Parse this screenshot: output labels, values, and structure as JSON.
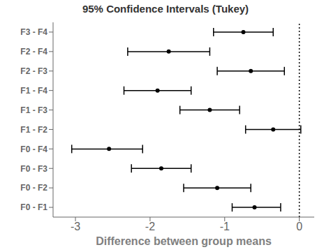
{
  "chart_data": {
    "type": "errorbar",
    "orientation": "horizontal",
    "title": "95% Confidence Intervals (Tukey)",
    "xlabel": "Difference between group means",
    "categories": [
      "F3 - F4",
      "F2 - F4",
      "F2 - F3",
      "F1 - F4",
      "F1 - F3",
      "F1 - F2",
      "F0 - F4",
      "F0 - F3",
      "F0 - F2",
      "F0 - F1"
    ],
    "values": [
      -0.75,
      -1.75,
      -0.65,
      -1.9,
      -1.2,
      -0.35,
      -2.55,
      -1.85,
      -1.1,
      -0.6
    ],
    "lower": [
      -1.15,
      -2.3,
      -1.1,
      -2.35,
      -1.6,
      -0.72,
      -3.05,
      -2.25,
      -1.55,
      -0.9
    ],
    "upper": [
      -0.35,
      -1.2,
      -0.2,
      -1.45,
      -0.8,
      0.02,
      -2.1,
      -1.45,
      -0.65,
      -0.25
    ],
    "xlim": [
      -3.3,
      0.2
    ],
    "xticks": [
      -3,
      -2,
      -1,
      0
    ],
    "color": "#000000",
    "grid": false,
    "vline": {
      "x": 0,
      "line_style": "dotted",
      "color": "#000000"
    }
  }
}
